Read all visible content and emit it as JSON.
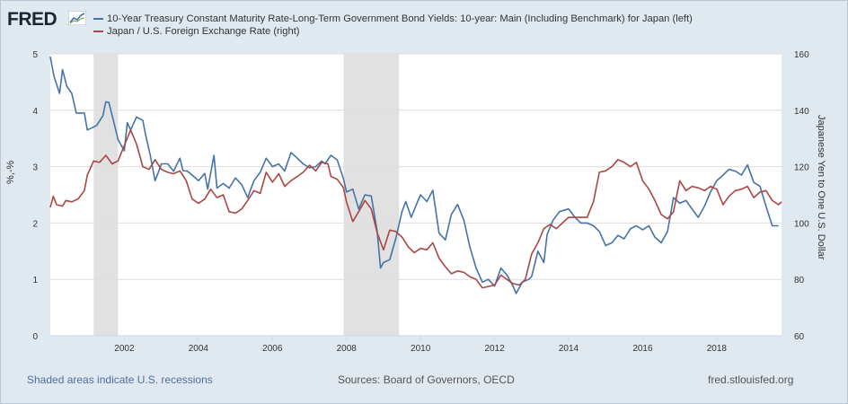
{
  "header": {
    "logo_text": "FRED",
    "logo_icon": "fred-chart-icon"
  },
  "colors": {
    "series_left": "#4572a7",
    "series_right": "#aa4643",
    "recession": "#e1e1e1",
    "grid": "#dddddd",
    "frame_bg": "#e1e9f0"
  },
  "footer": {
    "recession_note": "Shaded areas indicate U.S. recessions",
    "sources": "Sources: Board of Governors, OECD",
    "site": "fred.stlouisfed.org"
  },
  "chart_data": {
    "type": "line",
    "title": "",
    "legend_placement": "top-left",
    "grid": true,
    "x_range": [
      2000.0,
      2019.75
    ],
    "x_ticks": [
      "2002",
      "2004",
      "2006",
      "2008",
      "2010",
      "2012",
      "2014",
      "2016",
      "2018"
    ],
    "x_tick_values": [
      2002,
      2004,
      2006,
      2008,
      2010,
      2012,
      2014,
      2016,
      2018
    ],
    "left_axis": {
      "label": "%,-%",
      "range": [
        0,
        5
      ],
      "ticks": [
        "0",
        "1",
        "2",
        "3",
        "4",
        "5"
      ]
    },
    "right_axis": {
      "label": "Japanese Yen to One U.S. Dollar",
      "range": [
        60,
        160
      ],
      "ticks": [
        "60",
        "80",
        "100",
        "120",
        "140",
        "160"
      ]
    },
    "recessions": [
      [
        2001.17,
        2001.83
      ],
      [
        2007.92,
        2009.42
      ]
    ],
    "series": [
      {
        "name": "10-Year Treasury Constant Maturity Rate-Long-Term Government Bond Yields: 10-year: Main (Including Benchmark) for Japan (left)",
        "axis": "left",
        "color": "#4572a7",
        "points": [
          [
            2000.0,
            4.95
          ],
          [
            2000.1,
            4.6
          ],
          [
            2000.25,
            4.3
          ],
          [
            2000.33,
            4.72
          ],
          [
            2000.45,
            4.42
          ],
          [
            2000.58,
            4.3
          ],
          [
            2000.7,
            3.95
          ],
          [
            2000.92,
            3.95
          ],
          [
            2001.0,
            3.65
          ],
          [
            2001.25,
            3.73
          ],
          [
            2001.42,
            3.9
          ],
          [
            2001.5,
            4.15
          ],
          [
            2001.58,
            4.14
          ],
          [
            2001.7,
            3.83
          ],
          [
            2001.83,
            3.48
          ],
          [
            2002.0,
            3.28
          ],
          [
            2002.08,
            3.78
          ],
          [
            2002.17,
            3.65
          ],
          [
            2002.33,
            3.88
          ],
          [
            2002.5,
            3.82
          ],
          [
            2002.58,
            3.55
          ],
          [
            2002.7,
            3.2
          ],
          [
            2002.83,
            2.75
          ],
          [
            2002.92,
            2.9
          ],
          [
            2003.0,
            3.05
          ],
          [
            2003.17,
            3.05
          ],
          [
            2003.33,
            2.92
          ],
          [
            2003.5,
            3.15
          ],
          [
            2003.58,
            2.93
          ],
          [
            2003.7,
            2.92
          ],
          [
            2003.83,
            2.85
          ],
          [
            2004.0,
            2.75
          ],
          [
            2004.17,
            2.88
          ],
          [
            2004.25,
            2.6
          ],
          [
            2004.42,
            3.2
          ],
          [
            2004.5,
            2.62
          ],
          [
            2004.67,
            2.7
          ],
          [
            2004.83,
            2.62
          ],
          [
            2005.0,
            2.8
          ],
          [
            2005.17,
            2.68
          ],
          [
            2005.33,
            2.45
          ],
          [
            2005.5,
            2.75
          ],
          [
            2005.67,
            2.9
          ],
          [
            2005.83,
            3.15
          ],
          [
            2006.0,
            3.0
          ],
          [
            2006.17,
            3.05
          ],
          [
            2006.33,
            2.92
          ],
          [
            2006.5,
            3.25
          ],
          [
            2006.67,
            3.15
          ],
          [
            2006.83,
            3.05
          ],
          [
            2007.0,
            2.98
          ],
          [
            2007.17,
            3.0
          ],
          [
            2007.33,
            3.1
          ],
          [
            2007.42,
            3.05
          ],
          [
            2007.58,
            3.2
          ],
          [
            2007.75,
            3.12
          ],
          [
            2007.92,
            2.78
          ],
          [
            2008.0,
            2.55
          ],
          [
            2008.17,
            2.6
          ],
          [
            2008.33,
            2.25
          ],
          [
            2008.5,
            2.5
          ],
          [
            2008.67,
            2.48
          ],
          [
            2008.83,
            1.85
          ],
          [
            2008.92,
            1.2
          ],
          [
            2009.0,
            1.3
          ],
          [
            2009.17,
            1.35
          ],
          [
            2009.33,
            1.72
          ],
          [
            2009.5,
            2.2
          ],
          [
            2009.6,
            2.38
          ],
          [
            2009.75,
            2.1
          ],
          [
            2009.92,
            2.38
          ],
          [
            2010.0,
            2.5
          ],
          [
            2010.17,
            2.38
          ],
          [
            2010.33,
            2.58
          ],
          [
            2010.5,
            1.82
          ],
          [
            2010.67,
            1.7
          ],
          [
            2010.83,
            2.15
          ],
          [
            2011.0,
            2.33
          ],
          [
            2011.17,
            2.05
          ],
          [
            2011.33,
            1.58
          ],
          [
            2011.5,
            1.2
          ],
          [
            2011.67,
            0.95
          ],
          [
            2011.83,
            1.0
          ],
          [
            2012.0,
            0.88
          ],
          [
            2012.17,
            1.2
          ],
          [
            2012.33,
            1.08
          ],
          [
            2012.5,
            0.88
          ],
          [
            2012.58,
            0.75
          ],
          [
            2012.75,
            0.95
          ],
          [
            2012.92,
            1.0
          ],
          [
            2013.0,
            1.05
          ],
          [
            2013.17,
            1.5
          ],
          [
            2013.33,
            1.3
          ],
          [
            2013.42,
            1.8
          ],
          [
            2013.58,
            2.05
          ],
          [
            2013.75,
            2.2
          ],
          [
            2014.0,
            2.25
          ],
          [
            2014.17,
            2.1
          ],
          [
            2014.33,
            2.0
          ],
          [
            2014.5,
            2.0
          ],
          [
            2014.67,
            1.95
          ],
          [
            2014.83,
            1.85
          ],
          [
            2015.0,
            1.6
          ],
          [
            2015.17,
            1.65
          ],
          [
            2015.33,
            1.78
          ],
          [
            2015.5,
            1.72
          ],
          [
            2015.67,
            1.9
          ],
          [
            2015.83,
            1.95
          ],
          [
            2016.0,
            1.88
          ],
          [
            2016.17,
            1.95
          ],
          [
            2016.33,
            1.75
          ],
          [
            2016.5,
            1.65
          ],
          [
            2016.67,
            1.85
          ],
          [
            2016.83,
            2.45
          ],
          [
            2017.0,
            2.35
          ],
          [
            2017.17,
            2.4
          ],
          [
            2017.33,
            2.25
          ],
          [
            2017.5,
            2.1
          ],
          [
            2017.67,
            2.3
          ],
          [
            2017.83,
            2.55
          ],
          [
            2018.0,
            2.75
          ],
          [
            2018.17,
            2.85
          ],
          [
            2018.33,
            2.95
          ],
          [
            2018.5,
            2.92
          ],
          [
            2018.67,
            2.85
          ],
          [
            2018.83,
            3.03
          ],
          [
            2019.0,
            2.72
          ],
          [
            2019.17,
            2.65
          ],
          [
            2019.33,
            2.3
          ],
          [
            2019.5,
            1.95
          ],
          [
            2019.67,
            1.95
          ]
        ]
      },
      {
        "name": "Japan / U.S. Foreign Exchange Rate (right)",
        "axis": "right",
        "color": "#aa4643",
        "points": [
          [
            2000.0,
            105.5
          ],
          [
            2000.08,
            109.5
          ],
          [
            2000.17,
            106.5
          ],
          [
            2000.33,
            106.0
          ],
          [
            2000.42,
            108.0
          ],
          [
            2000.58,
            107.5
          ],
          [
            2000.75,
            108.5
          ],
          [
            2000.92,
            111.5
          ],
          [
            2001.0,
            117.0
          ],
          [
            2001.17,
            122.0
          ],
          [
            2001.33,
            121.5
          ],
          [
            2001.5,
            124.0
          ],
          [
            2001.67,
            121.0
          ],
          [
            2001.83,
            122.0
          ],
          [
            2002.0,
            127.5
          ],
          [
            2002.17,
            133.0
          ],
          [
            2002.33,
            128.0
          ],
          [
            2002.5,
            120.0
          ],
          [
            2002.67,
            119.0
          ],
          [
            2002.83,
            122.5
          ],
          [
            2003.0,
            119.0
          ],
          [
            2003.17,
            118.0
          ],
          [
            2003.33,
            117.5
          ],
          [
            2003.5,
            118.5
          ],
          [
            2003.67,
            115.0
          ],
          [
            2003.83,
            108.5
          ],
          [
            2004.0,
            107.0
          ],
          [
            2004.17,
            108.5
          ],
          [
            2004.33,
            112.0
          ],
          [
            2004.5,
            109.0
          ],
          [
            2004.67,
            110.0
          ],
          [
            2004.83,
            104.0
          ],
          [
            2005.0,
            103.5
          ],
          [
            2005.17,
            105.0
          ],
          [
            2005.33,
            108.0
          ],
          [
            2005.5,
            111.5
          ],
          [
            2005.67,
            110.5
          ],
          [
            2005.83,
            118.0
          ],
          [
            2006.0,
            114.5
          ],
          [
            2006.17,
            117.5
          ],
          [
            2006.33,
            113.0
          ],
          [
            2006.5,
            115.0
          ],
          [
            2006.67,
            116.5
          ],
          [
            2006.83,
            118.0
          ],
          [
            2007.0,
            120.5
          ],
          [
            2007.17,
            118.5
          ],
          [
            2007.33,
            121.5
          ],
          [
            2007.5,
            121.0
          ],
          [
            2007.58,
            116.5
          ],
          [
            2007.75,
            115.5
          ],
          [
            2007.92,
            112.5
          ],
          [
            2008.0,
            107.5
          ],
          [
            2008.17,
            100.5
          ],
          [
            2008.33,
            104.0
          ],
          [
            2008.5,
            108.0
          ],
          [
            2008.67,
            105.0
          ],
          [
            2008.83,
            96.5
          ],
          [
            2009.0,
            90.5
          ],
          [
            2009.17,
            97.5
          ],
          [
            2009.33,
            97.0
          ],
          [
            2009.5,
            95.0
          ],
          [
            2009.67,
            91.5
          ],
          [
            2009.83,
            89.5
          ],
          [
            2010.0,
            91.0
          ],
          [
            2010.17,
            90.5
          ],
          [
            2010.33,
            93.0
          ],
          [
            2010.5,
            87.5
          ],
          [
            2010.67,
            84.5
          ],
          [
            2010.83,
            82.0
          ],
          [
            2011.0,
            83.0
          ],
          [
            2011.17,
            82.5
          ],
          [
            2011.33,
            81.0
          ],
          [
            2011.5,
            80.0
          ],
          [
            2011.67,
            77.0
          ],
          [
            2011.83,
            77.5
          ],
          [
            2012.0,
            78.0
          ],
          [
            2012.17,
            81.5
          ],
          [
            2012.33,
            80.0
          ],
          [
            2012.5,
            78.5
          ],
          [
            2012.67,
            78.0
          ],
          [
            2012.83,
            80.0
          ],
          [
            2013.0,
            89.0
          ],
          [
            2013.17,
            93.0
          ],
          [
            2013.33,
            98.0
          ],
          [
            2013.5,
            99.5
          ],
          [
            2013.67,
            98.0
          ],
          [
            2013.83,
            100.0
          ],
          [
            2014.0,
            102.0
          ],
          [
            2014.17,
            102.0
          ],
          [
            2014.33,
            102.0
          ],
          [
            2014.5,
            102.0
          ],
          [
            2014.67,
            107.5
          ],
          [
            2014.83,
            118.0
          ],
          [
            2015.0,
            118.5
          ],
          [
            2015.17,
            120.0
          ],
          [
            2015.33,
            122.5
          ],
          [
            2015.5,
            121.5
          ],
          [
            2015.67,
            120.0
          ],
          [
            2015.83,
            121.5
          ],
          [
            2016.0,
            115.0
          ],
          [
            2016.17,
            112.0
          ],
          [
            2016.33,
            108.0
          ],
          [
            2016.5,
            103.0
          ],
          [
            2016.67,
            101.5
          ],
          [
            2016.83,
            104.0
          ],
          [
            2017.0,
            115.0
          ],
          [
            2017.17,
            111.5
          ],
          [
            2017.33,
            113.0
          ],
          [
            2017.5,
            112.5
          ],
          [
            2017.67,
            111.5
          ],
          [
            2017.83,
            113.0
          ],
          [
            2018.0,
            112.0
          ],
          [
            2018.17,
            106.5
          ],
          [
            2018.33,
            109.5
          ],
          [
            2018.5,
            111.5
          ],
          [
            2018.67,
            112.0
          ],
          [
            2018.83,
            113.0
          ],
          [
            2019.0,
            109.0
          ],
          [
            2019.17,
            111.0
          ],
          [
            2019.33,
            111.5
          ],
          [
            2019.5,
            108.0
          ],
          [
            2019.67,
            106.5
          ],
          [
            2019.75,
            107.5
          ]
        ]
      }
    ]
  }
}
